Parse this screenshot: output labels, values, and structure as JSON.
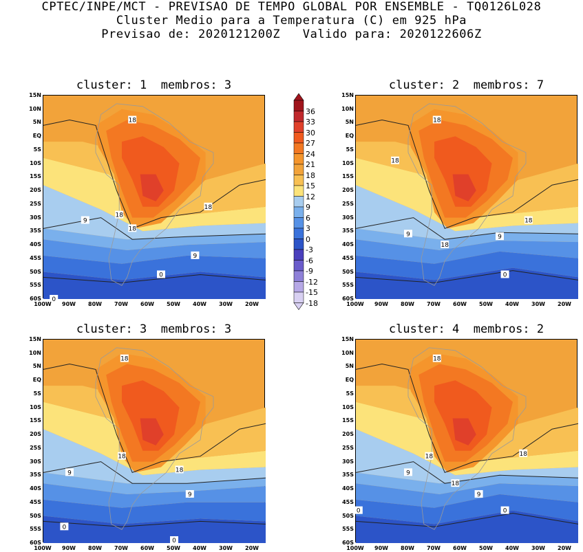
{
  "header": {
    "line1": "CPTEC/INPE/MCT - PREVISAO DE TEMPO GLOBAL POR ENSEMBLE - TQ0126L028",
    "line2": "Cluster Medio para a Temperatura (C) em 925 hPa",
    "line3": "Previsao de: 2020121200Z   Valido para: 2020122606Z"
  },
  "axes": {
    "lat_ticks": [
      "15N",
      "10N",
      "5N",
      "EQ",
      "5S",
      "10S",
      "15S",
      "20S",
      "25S",
      "30S",
      "35S",
      "40S",
      "45S",
      "50S",
      "55S",
      "60S"
    ],
    "lon_ticks": [
      "100W",
      "90W",
      "80W",
      "70W",
      "60W",
      "50W",
      "40W",
      "30W",
      "20W"
    ]
  },
  "panels": [
    {
      "title": "cluster: 1  membros: 3",
      "labels": [
        {
          "text": "18",
          "lon": -66,
          "lat": 6
        },
        {
          "text": "18",
          "lon": -71,
          "lat": -29
        },
        {
          "text": "18",
          "lon": -66,
          "lat": -34
        },
        {
          "text": "18",
          "lon": -37,
          "lat": -26
        },
        {
          "text": "9",
          "lon": -84,
          "lat": -31
        },
        {
          "text": "9",
          "lon": -42,
          "lat": -44
        },
        {
          "text": "0",
          "lon": -55,
          "lat": -51
        },
        {
          "text": "0",
          "lon": -96,
          "lat": -60
        }
      ]
    },
    {
      "title": "cluster: 2  membros: 7",
      "labels": [
        {
          "text": "18",
          "lon": -69,
          "lat": 6
        },
        {
          "text": "18",
          "lon": -85,
          "lat": -9
        },
        {
          "text": "18",
          "lon": -66,
          "lat": -40
        },
        {
          "text": "18",
          "lon": -34,
          "lat": -31
        },
        {
          "text": "9",
          "lon": -80,
          "lat": -36
        },
        {
          "text": "9",
          "lon": -45,
          "lat": -37
        },
        {
          "text": "0",
          "lon": -43,
          "lat": -51
        }
      ]
    },
    {
      "title": "cluster: 3  membros: 3",
      "labels": [
        {
          "text": "18",
          "lon": -69,
          "lat": 8
        },
        {
          "text": "18",
          "lon": -70,
          "lat": -28
        },
        {
          "text": "18",
          "lon": -48,
          "lat": -33
        },
        {
          "text": "9",
          "lon": -90,
          "lat": -34
        },
        {
          "text": "9",
          "lon": -44,
          "lat": -42
        },
        {
          "text": "0",
          "lon": -92,
          "lat": -54
        },
        {
          "text": "0",
          "lon": -50,
          "lat": -59
        }
      ]
    },
    {
      "title": "cluster: 4  membros: 2",
      "labels": [
        {
          "text": "18",
          "lon": -69,
          "lat": 8
        },
        {
          "text": "18",
          "lon": -72,
          "lat": -28
        },
        {
          "text": "18",
          "lon": -62,
          "lat": -38
        },
        {
          "text": "18",
          "lon": -36,
          "lat": -27
        },
        {
          "text": "9",
          "lon": -80,
          "lat": -34
        },
        {
          "text": "9",
          "lon": -53,
          "lat": -42
        },
        {
          "text": "0",
          "lon": -99,
          "lat": -48
        },
        {
          "text": "0",
          "lon": -43,
          "lat": -48
        }
      ]
    }
  ],
  "colorbar": {
    "levels": [
      "36",
      "33",
      "30",
      "27",
      "24",
      "21",
      "18",
      "15",
      "12",
      "9",
      "6",
      "3",
      "0",
      "-3",
      "-6",
      "-9",
      "-12",
      "-15",
      "-18"
    ],
    "colors": [
      "#a0141c",
      "#c0282c",
      "#e0402a",
      "#f05a1e",
      "#f37822",
      "#f5952c",
      "#f2a33a",
      "#f8c053",
      "#fce37a",
      "#a8cdef",
      "#7ab0ec",
      "#5691e6",
      "#3a72db",
      "#2c54c8",
      "#4a40bd",
      "#6a5ccb",
      "#8e80d8",
      "#b6a8e6",
      "#d8d0f2"
    ]
  },
  "chart_data": {
    "type": "heatmap",
    "title": "Cluster Medio para a Temperatura (C) em 925 hPa",
    "variable": "Temperatura (C) em 925 hPa",
    "domain": {
      "lon": [
        -100,
        -15
      ],
      "lat": [
        -60,
        15
      ]
    },
    "contour_interval": 9,
    "contours_labeled": [
      0,
      9,
      18
    ],
    "levels": [
      36,
      33,
      30,
      27,
      24,
      21,
      18,
      15,
      12,
      9,
      6,
      3,
      0,
      -3,
      -6,
      -9,
      -12,
      -15,
      -18
    ],
    "clusters": [
      {
        "cluster": 1,
        "membros": 3
      },
      {
        "cluster": 2,
        "membros": 7
      },
      {
        "cluster": 3,
        "membros": 3
      },
      {
        "cluster": 4,
        "membros": 2
      }
    ]
  }
}
